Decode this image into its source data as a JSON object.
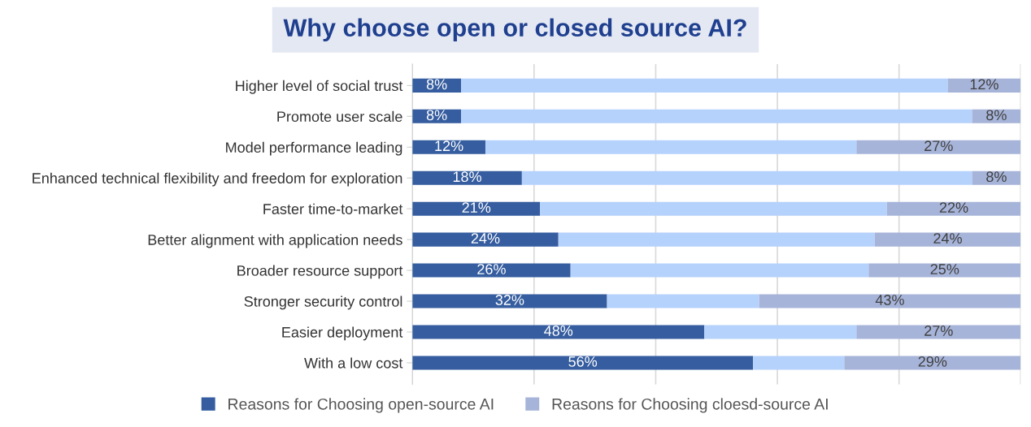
{
  "chart_data": {
    "type": "bar",
    "orientation": "horizontal",
    "stacked": true,
    "title": "Why choose open or closed source AI?",
    "categories": [
      "Higher level of social trust",
      "Promote user scale",
      "Model performance leading",
      "Enhanced technical flexibility and freedom for exploration",
      "Faster time-to-market",
      "Better alignment with application needs",
      "Broader resource support",
      "Stronger security control",
      "Easier deployment",
      "With a low cost"
    ],
    "series": [
      {
        "name": "Reasons for Choosing open-source AI",
        "color": "#355d9f",
        "values": [
          8,
          8,
          12,
          18,
          21,
          24,
          26,
          32,
          48,
          56
        ],
        "value_labels": [
          "8%",
          "8%",
          "12%",
          "18%",
          "21%",
          "24%",
          "26%",
          "32%",
          "48%",
          "56%"
        ]
      },
      {
        "color": "#b5d2fc",
        "values": [
          80,
          84,
          61,
          74,
          57,
          52,
          49,
          25,
          25,
          15
        ]
      },
      {
        "name": "Reasons for Choosing cloesd-source AI",
        "color": "#a7b4d9",
        "values": [
          12,
          8,
          27,
          8,
          22,
          24,
          25,
          43,
          27,
          29
        ],
        "value_labels": [
          "12%",
          "8%",
          "27%",
          "8%",
          "22%",
          "24%",
          "25%",
          "43%",
          "27%",
          "29%"
        ]
      }
    ],
    "xlim": [
      0,
      100
    ],
    "xticks": [
      {
        "value": 0,
        "label": null
      },
      {
        "value": 20,
        "label": null
      },
      {
        "value": 40,
        "label": null
      },
      {
        "value": 60,
        "label": null
      },
      {
        "value": 80,
        "label": null
      },
      {
        "value": 100,
        "label": null
      }
    ],
    "grid": "x",
    "legend": "bottom"
  }
}
